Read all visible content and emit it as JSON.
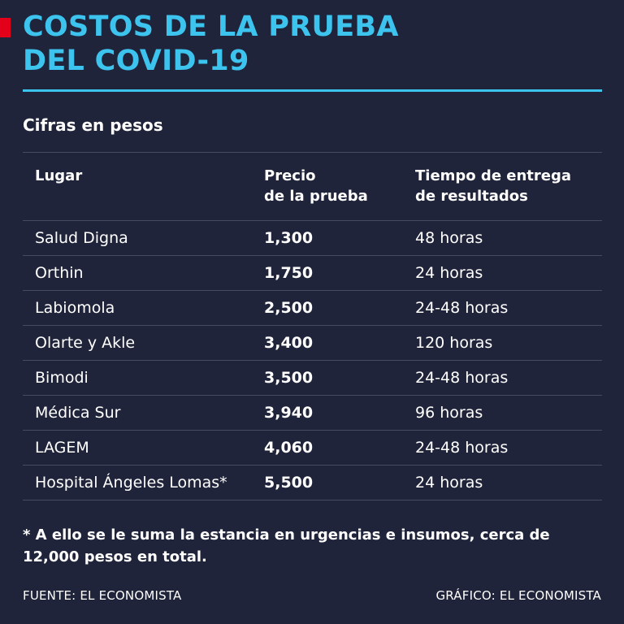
{
  "header": {
    "title": "COSTOS DE LA PRUEBA\nDEL COVID-19",
    "accent_color": "#e2001a",
    "title_color": "#3cc4ef",
    "background": "#20243a"
  },
  "subtitle": "Cifras en pesos",
  "chart_data": {
    "type": "table",
    "columns": [
      "Lugar",
      "Precio\nde la prueba",
      "Tiempo de entrega\nde resultados"
    ],
    "rows": [
      {
        "place": "Salud Digna",
        "price": "1,300",
        "time": "48 horas"
      },
      {
        "place": "Orthin",
        "price": "1,750",
        "time": "24 horas"
      },
      {
        "place": "Labiomola",
        "price": "2,500",
        "time": "24-48 horas"
      },
      {
        "place": "Olarte y Akle",
        "price": "3,400",
        "time": "120 horas"
      },
      {
        "place": "Bimodi",
        "price": "3,500",
        "time": "24-48 horas"
      },
      {
        "place": "Médica Sur",
        "price": "3,940",
        "time": "96 horas"
      },
      {
        "place": "LAGEM",
        "price": "4,060",
        "time": "24-48 horas"
      },
      {
        "place": "Hospital Ángeles Lomas*",
        "price": "5,500",
        "time": "24 horas"
      }
    ]
  },
  "note": "* A ello se le suma la estancia en urgencias e insumos, cerca de 12,000 pesos en total.",
  "footer": {
    "source": "FUENTE: EL ECONOMISTA",
    "credit": "GRÁFICO: EL ECONOMISTA"
  }
}
